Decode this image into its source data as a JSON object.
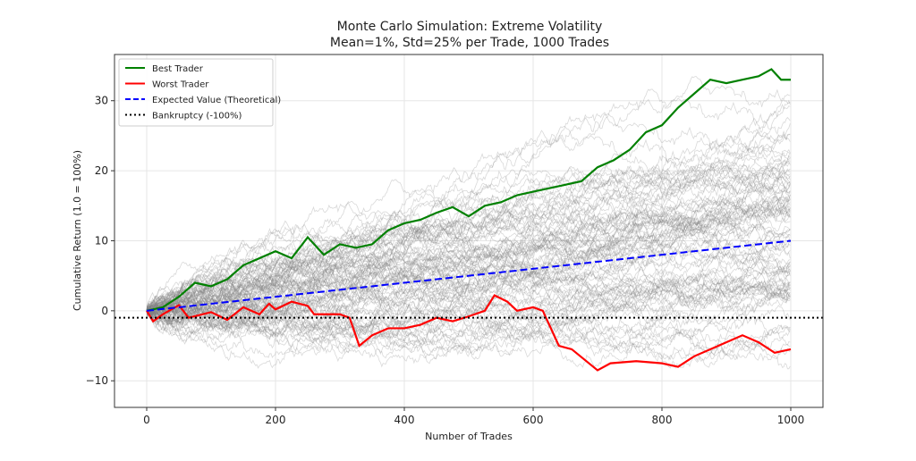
{
  "chart_data": {
    "type": "line",
    "title": "Monte Carlo Simulation: Extreme Volatility",
    "subtitle": "Mean=1%, Std=25% per Trade, 1000 Trades",
    "xlabel": "Number of Trades",
    "ylabel": "Cumulative Return (1.0 = 100%)",
    "xlim": [
      -50,
      1050
    ],
    "ylim": [
      -13.8,
      36.6
    ],
    "xticks": [
      0,
      200,
      400,
      600,
      800,
      1000
    ],
    "xtick_labels": [
      "0",
      "200",
      "400",
      "600",
      "800",
      "1000"
    ],
    "yticks": [
      -10,
      0,
      10,
      20,
      30
    ],
    "ytick_labels": [
      "−10",
      "0",
      "10",
      "20",
      "30"
    ],
    "grid": true,
    "legend_placement": "top-left",
    "series": [
      {
        "name": "Best Trader",
        "color": "#008000",
        "style": "solid",
        "x": [
          0,
          25,
          50,
          75,
          100,
          125,
          150,
          175,
          200,
          225,
          250,
          275,
          300,
          325,
          350,
          375,
          400,
          425,
          450,
          475,
          500,
          525,
          550,
          575,
          600,
          625,
          650,
          675,
          700,
          725,
          750,
          775,
          800,
          825,
          850,
          875,
          900,
          925,
          950,
          970,
          985,
          1000
        ],
        "y": [
          0,
          0.5,
          2,
          4,
          3.5,
          4.5,
          6.5,
          7.5,
          8.5,
          7.5,
          10.5,
          8,
          9.5,
          9,
          9.5,
          11.5,
          12.5,
          13,
          14,
          14.8,
          13.5,
          15,
          15.5,
          16.5,
          17,
          17.5,
          18,
          18.5,
          20.5,
          21.5,
          23,
          25.5,
          26.5,
          29,
          31,
          33,
          32.5,
          33,
          33.5,
          34.5,
          33,
          33
        ]
      },
      {
        "name": "Worst Trader",
        "color": "#ff0000",
        "style": "solid",
        "x": [
          0,
          10,
          25,
          50,
          65,
          100,
          125,
          150,
          175,
          190,
          200,
          225,
          250,
          260,
          300,
          315,
          330,
          350,
          375,
          400,
          425,
          450,
          475,
          500,
          525,
          540,
          560,
          575,
          600,
          615,
          640,
          660,
          700,
          720,
          760,
          800,
          825,
          850,
          875,
          925,
          950,
          975,
          1000
        ],
        "y": [
          0,
          -1.5,
          -0.5,
          0.8,
          -1,
          -0.2,
          -1.3,
          0.5,
          -0.5,
          1,
          0.2,
          1.3,
          0.7,
          -0.5,
          -0.5,
          -1,
          -5,
          -3.5,
          -2.5,
          -2.5,
          -2,
          -1,
          -1.5,
          -0.8,
          0,
          2.2,
          1.3,
          0,
          0.5,
          0,
          -5,
          -5.5,
          -8.5,
          -7.5,
          -7.2,
          -7.5,
          -8,
          -6.5,
          -5.5,
          -3.5,
          -4.5,
          -6,
          -5.5
        ]
      },
      {
        "name": "Expected Value (Theoretical)",
        "color": "#0000ff",
        "style": "dashed",
        "x": [
          0,
          1000
        ],
        "y": [
          0,
          10
        ]
      },
      {
        "name": "Bankruptcy (-100%)",
        "color": "#000000",
        "style": "dotted",
        "y_constant": -1
      }
    ],
    "background_paths_color": "#808080"
  }
}
